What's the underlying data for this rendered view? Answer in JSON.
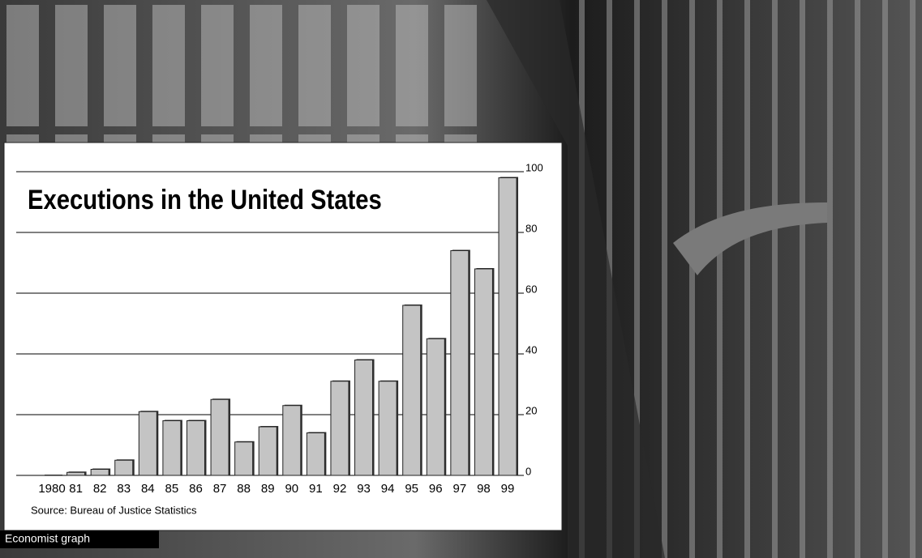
{
  "chart_data": {
    "type": "bar",
    "title": "Executions in the United States",
    "source": "Source: Bureau of Justice Statistics",
    "categories": [
      "1980",
      "81",
      "82",
      "83",
      "84",
      "85",
      "86",
      "87",
      "88",
      "89",
      "90",
      "91",
      "92",
      "93",
      "94",
      "95",
      "96",
      "97",
      "98",
      "99"
    ],
    "values": [
      0,
      1,
      2,
      5,
      21,
      18,
      18,
      25,
      11,
      16,
      23,
      14,
      31,
      38,
      31,
      56,
      45,
      74,
      68,
      98
    ],
    "color": "#c4c4c4",
    "ylim": [
      0,
      100
    ],
    "yticks": [
      0,
      20,
      40,
      60,
      80,
      100
    ],
    "grid": true
  },
  "caption": "Economist graph"
}
